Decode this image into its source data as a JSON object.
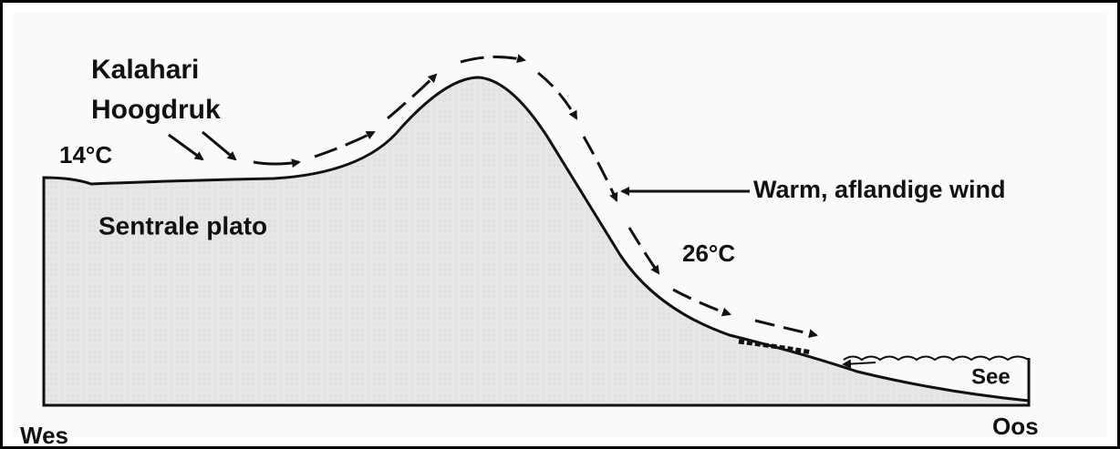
{
  "labels": {
    "source_line1": "Kalahari",
    "source_line2": "Hoogdruk",
    "temp_plateau": "14°C",
    "plateau": "Sentrale plato",
    "wind": "Warm, aflandige wind",
    "temp_coast": "26°C",
    "sea": "See",
    "west": "Wes",
    "east": "Oos"
  }
}
